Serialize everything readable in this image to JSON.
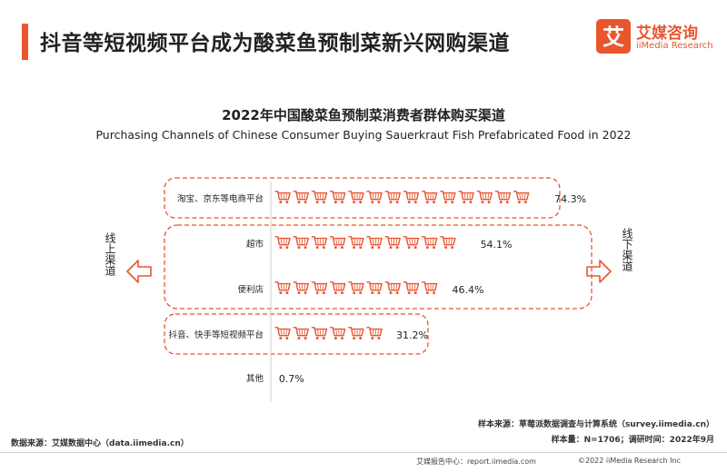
{
  "header": {
    "title": "抖音等短视频平台成为酸菜鱼预制菜新兴网购渠道",
    "logo_cn": "艾媒咨询",
    "logo_en": "iiMedia Research",
    "logo_glyph": "艾",
    "accent": "#e8562f"
  },
  "chart_data": {
    "type": "bar",
    "title": "2022年中国酸菜鱼预制菜消费者群体购买渠道",
    "subtitle": "Purchasing Channels of Chinese Consumer Buying Sauerkraut Fish Prefabricated Food in 2022",
    "categories": [
      "淘宝、京东等电商平台",
      "超市",
      "便利店",
      "抖音、快手等短视频平台",
      "其他"
    ],
    "values": [
      74.3,
      54.1,
      46.4,
      31.2,
      0.7
    ],
    "value_labels": [
      "74.3%",
      "54.1%",
      "46.4%",
      "31.2%",
      "0.7%"
    ],
    "unit": "%",
    "group_labels": {
      "online": "线上渠道",
      "offline": "线下渠道"
    },
    "icon": "shopping-cart-icon",
    "color": "#e8562f",
    "grid": false
  },
  "footer": {
    "data_source": "数据来源：艾媒数据中心（data.iimedia.cn）",
    "sample_source": "样本来源：草莓派数据调查与计算系统（survey.iimedia.cn）",
    "sample_info": "样本量：N=1706；调研时间：2022年9月",
    "website": "艾媒报告中心：report.iimedia.com",
    "copyright": "©2022  iiMedia Research  Inc"
  }
}
